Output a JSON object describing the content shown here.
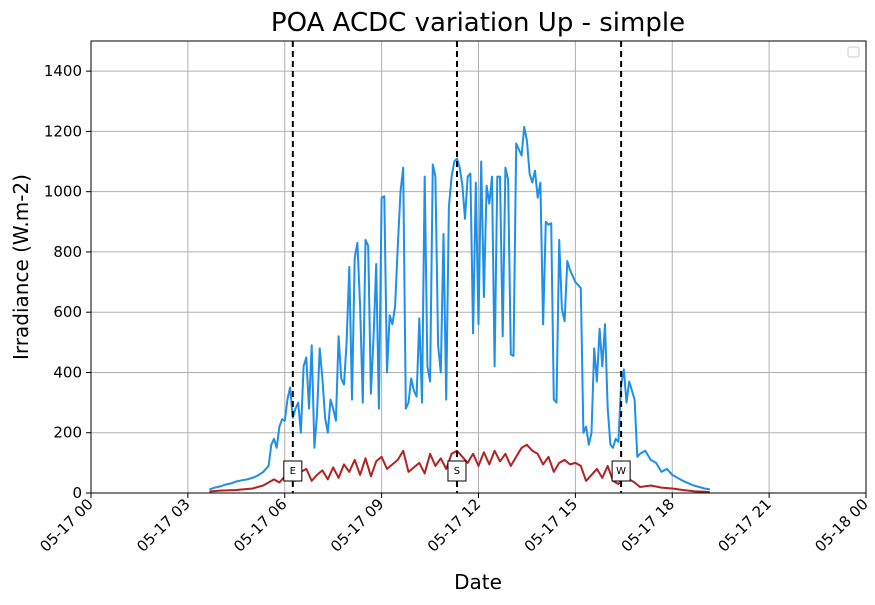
{
  "chart_data": {
    "type": "line",
    "title": "POA ACDC variation Up - simple",
    "xlabel": "Date",
    "ylabel": "Irradiance (W.m-2)",
    "xlim": [
      "2024-05-17 00:00",
      "2024-05-18 00:00"
    ],
    "ylim": [
      0,
      1500
    ],
    "x_tick_labels": [
      "05-17 00",
      "05-17 03",
      "05-17 06",
      "05-17 09",
      "05-17 12",
      "05-17 15",
      "05-17 18",
      "05-17 21",
      "05-18 00"
    ],
    "y_ticks": [
      0,
      200,
      400,
      600,
      800,
      1000,
      1200,
      1400
    ],
    "grid": true,
    "legend_placement": "top-right",
    "series": [
      {
        "color": "#1f8fe8",
        "points": [
          [
            "03:40",
            12
          ],
          [
            "03:50",
            18
          ],
          [
            "04:00",
            22
          ],
          [
            "04:10",
            28
          ],
          [
            "04:20",
            32
          ],
          [
            "04:30",
            38
          ],
          [
            "04:40",
            42
          ],
          [
            "04:50",
            45
          ],
          [
            "05:00",
            50
          ],
          [
            "05:10",
            58
          ],
          [
            "05:20",
            70
          ],
          [
            "05:30",
            90
          ],
          [
            "05:35",
            160
          ],
          [
            "05:40",
            180
          ],
          [
            "05:45",
            150
          ],
          [
            "05:50",
            220
          ],
          [
            "05:55",
            245
          ],
          [
            "06:00",
            240
          ],
          [
            "06:05",
            310
          ],
          [
            "06:10",
            350
          ],
          [
            "06:15",
            250
          ],
          [
            "06:20",
            280
          ],
          [
            "06:25",
            300
          ],
          [
            "06:30",
            200
          ],
          [
            "06:35",
            420
          ],
          [
            "06:40",
            450
          ],
          [
            "06:45",
            280
          ],
          [
            "06:50",
            490
          ],
          [
            "06:55",
            150
          ],
          [
            "07:00",
            260
          ],
          [
            "07:05",
            480
          ],
          [
            "07:10",
            380
          ],
          [
            "07:15",
            250
          ],
          [
            "07:20",
            200
          ],
          [
            "07:25",
            310
          ],
          [
            "07:30",
            280
          ],
          [
            "07:35",
            240
          ],
          [
            "07:40",
            520
          ],
          [
            "07:45",
            380
          ],
          [
            "07:50",
            360
          ],
          [
            "07:55",
            500
          ],
          [
            "08:00",
            750
          ],
          [
            "08:05",
            310
          ],
          [
            "08:10",
            780
          ],
          [
            "08:15",
            830
          ],
          [
            "08:20",
            620
          ],
          [
            "08:25",
            300
          ],
          [
            "08:30",
            840
          ],
          [
            "08:35",
            820
          ],
          [
            "08:40",
            330
          ],
          [
            "08:45",
            520
          ],
          [
            "08:50",
            760
          ],
          [
            "08:55",
            280
          ],
          [
            "09:00",
            980
          ],
          [
            "09:05",
            985
          ],
          [
            "09:10",
            400
          ],
          [
            "09:15",
            590
          ],
          [
            "09:20",
            560
          ],
          [
            "09:25",
            620
          ],
          [
            "09:30",
            820
          ],
          [
            "09:35",
            1000
          ],
          [
            "09:40",
            1080
          ],
          [
            "09:45",
            280
          ],
          [
            "09:50",
            300
          ],
          [
            "09:55",
            380
          ],
          [
            "10:00",
            340
          ],
          [
            "10:05",
            320
          ],
          [
            "10:10",
            580
          ],
          [
            "10:15",
            300
          ],
          [
            "10:20",
            1050
          ],
          [
            "10:25",
            420
          ],
          [
            "10:30",
            370
          ],
          [
            "10:35",
            1090
          ],
          [
            "10:40",
            1050
          ],
          [
            "10:45",
            490
          ],
          [
            "10:50",
            400
          ],
          [
            "10:55",
            860
          ],
          [
            "11:00",
            310
          ],
          [
            "11:05",
            950
          ],
          [
            "11:10",
            1050
          ],
          [
            "11:15",
            1100
          ],
          [
            "11:20",
            1110
          ],
          [
            "11:25",
            1080
          ],
          [
            "11:30",
            1020
          ],
          [
            "11:35",
            910
          ],
          [
            "11:40",
            1050
          ],
          [
            "11:45",
            1060
          ],
          [
            "11:50",
            530
          ],
          [
            "11:55",
            1030
          ],
          [
            "12:00",
            560
          ],
          [
            "12:05",
            1100
          ],
          [
            "12:10",
            650
          ],
          [
            "12:15",
            1020
          ],
          [
            "12:20",
            960
          ],
          [
            "12:25",
            1050
          ],
          [
            "12:30",
            420
          ],
          [
            "12:35",
            1050
          ],
          [
            "12:40",
            1050
          ],
          [
            "12:45",
            520
          ],
          [
            "12:50",
            1080
          ],
          [
            "12:55",
            1040
          ],
          [
            "13:00",
            460
          ],
          [
            "13:05",
            455
          ],
          [
            "13:10",
            1160
          ],
          [
            "13:15",
            1140
          ],
          [
            "13:20",
            1120
          ],
          [
            "13:25",
            1215
          ],
          [
            "13:30",
            1170
          ],
          [
            "13:35",
            1060
          ],
          [
            "13:40",
            1030
          ],
          [
            "13:45",
            1070
          ],
          [
            "13:50",
            980
          ],
          [
            "13:55",
            1030
          ],
          [
            "14:00",
            560
          ],
          [
            "14:05",
            900
          ],
          [
            "14:10",
            890
          ],
          [
            "14:15",
            895
          ],
          [
            "14:20",
            310
          ],
          [
            "14:25",
            300
          ],
          [
            "14:30",
            840
          ],
          [
            "14:35",
            610
          ],
          [
            "14:40",
            570
          ],
          [
            "14:45",
            770
          ],
          [
            "14:50",
            740
          ],
          [
            "14:55",
            720
          ],
          [
            "15:00",
            700
          ],
          [
            "15:05",
            690
          ],
          [
            "15:10",
            680
          ],
          [
            "15:15",
            200
          ],
          [
            "15:20",
            220
          ],
          [
            "15:25",
            160
          ],
          [
            "15:30",
            200
          ],
          [
            "15:35",
            480
          ],
          [
            "15:40",
            370
          ],
          [
            "15:45",
            545
          ],
          [
            "15:50",
            420
          ],
          [
            "15:55",
            560
          ],
          [
            "16:00",
            280
          ],
          [
            "16:05",
            160
          ],
          [
            "16:10",
            150
          ],
          [
            "16:15",
            180
          ],
          [
            "16:20",
            170
          ],
          [
            "16:25",
            360
          ],
          [
            "16:30",
            410
          ],
          [
            "16:35",
            300
          ],
          [
            "16:40",
            370
          ],
          [
            "16:45",
            340
          ],
          [
            "16:50",
            310
          ],
          [
            "16:55",
            120
          ],
          [
            "17:00",
            130
          ],
          [
            "17:10",
            140
          ],
          [
            "17:20",
            110
          ],
          [
            "17:30",
            100
          ],
          [
            "17:40",
            70
          ],
          [
            "17:50",
            80
          ],
          [
            "18:00",
            60
          ],
          [
            "18:20",
            40
          ],
          [
            "18:40",
            25
          ],
          [
            "19:00",
            15
          ],
          [
            "19:10",
            12
          ]
        ]
      },
      {
        "color": "#b22222",
        "points": [
          [
            "03:40",
            5
          ],
          [
            "04:00",
            8
          ],
          [
            "04:30",
            10
          ],
          [
            "05:00",
            15
          ],
          [
            "05:20",
            25
          ],
          [
            "05:40",
            45
          ],
          [
            "05:50",
            35
          ],
          [
            "06:00",
            55
          ],
          [
            "06:10",
            60
          ],
          [
            "06:20",
            40
          ],
          [
            "06:30",
            70
          ],
          [
            "06:40",
            80
          ],
          [
            "06:50",
            40
          ],
          [
            "07:00",
            60
          ],
          [
            "07:10",
            75
          ],
          [
            "07:20",
            45
          ],
          [
            "07:30",
            85
          ],
          [
            "07:40",
            50
          ],
          [
            "07:50",
            95
          ],
          [
            "08:00",
            70
          ],
          [
            "08:10",
            110
          ],
          [
            "08:20",
            60
          ],
          [
            "08:30",
            115
          ],
          [
            "08:40",
            55
          ],
          [
            "08:50",
            105
          ],
          [
            "09:00",
            120
          ],
          [
            "09:10",
            80
          ],
          [
            "09:20",
            95
          ],
          [
            "09:30",
            110
          ],
          [
            "09:40",
            140
          ],
          [
            "09:50",
            70
          ],
          [
            "10:00",
            85
          ],
          [
            "10:10",
            100
          ],
          [
            "10:20",
            65
          ],
          [
            "10:30",
            130
          ],
          [
            "10:40",
            90
          ],
          [
            "10:50",
            115
          ],
          [
            "11:00",
            80
          ],
          [
            "11:10",
            130
          ],
          [
            "11:20",
            140
          ],
          [
            "11:30",
            120
          ],
          [
            "11:40",
            100
          ],
          [
            "11:50",
            130
          ],
          [
            "12:00",
            90
          ],
          [
            "12:10",
            135
          ],
          [
            "12:20",
            95
          ],
          [
            "12:30",
            140
          ],
          [
            "12:40",
            105
          ],
          [
            "12:50",
            130
          ],
          [
            "13:00",
            90
          ],
          [
            "13:10",
            120
          ],
          [
            "13:20",
            150
          ],
          [
            "13:30",
            160
          ],
          [
            "13:40",
            140
          ],
          [
            "13:50",
            130
          ],
          [
            "14:00",
            95
          ],
          [
            "14:10",
            120
          ],
          [
            "14:20",
            70
          ],
          [
            "14:30",
            100
          ],
          [
            "14:40",
            110
          ],
          [
            "14:50",
            95
          ],
          [
            "15:00",
            100
          ],
          [
            "15:10",
            90
          ],
          [
            "15:20",
            40
          ],
          [
            "15:30",
            60
          ],
          [
            "15:40",
            80
          ],
          [
            "15:50",
            50
          ],
          [
            "16:00",
            90
          ],
          [
            "16:10",
            40
          ],
          [
            "16:20",
            30
          ],
          [
            "16:30",
            50
          ],
          [
            "16:40",
            45
          ],
          [
            "16:50",
            35
          ],
          [
            "17:00",
            20
          ],
          [
            "17:20",
            25
          ],
          [
            "17:40",
            18
          ],
          [
            "18:00",
            15
          ],
          [
            "18:20",
            10
          ],
          [
            "18:40",
            6
          ],
          [
            "19:00",
            4
          ],
          [
            "19:10",
            3
          ]
        ]
      }
    ],
    "vertical_markers": [
      {
        "label": "E",
        "time": "06:15"
      },
      {
        "label": "S",
        "time": "11:20"
      },
      {
        "label": "W",
        "time": "16:25"
      }
    ]
  }
}
